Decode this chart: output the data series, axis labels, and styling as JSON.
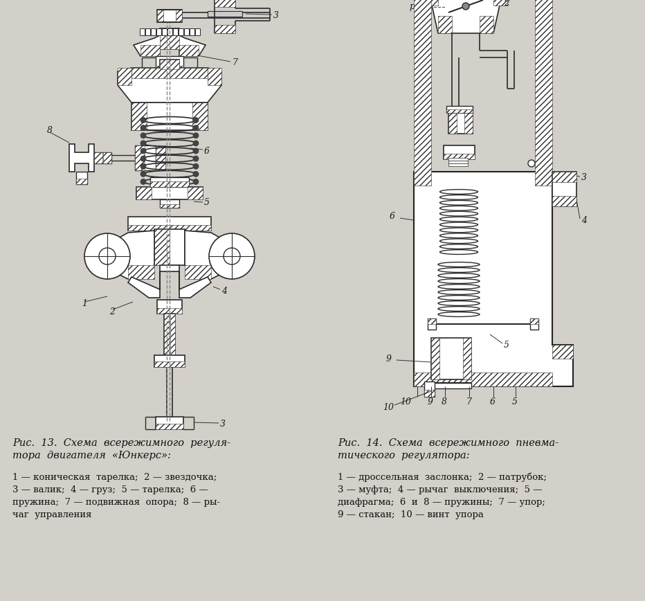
{
  "background_color": "#d3cfc9",
  "fig_width": 9.32,
  "fig_height": 8.68,
  "dpi": 100,
  "caption_left_title": "Рис.  13.  Схема  всережимного  регуля-\nтора  двигателя  «Юнкерс»:",
  "caption_left_body": "1 — коническая  тарелка;  2 — звездочка;\n3 — валик;  4 — груз;  5 — тарелка;  6 —\nпружина;  7 — подвижная  опора;  8 — ры-\nчаг  управления",
  "caption_right_title": "Рис.  14.  Схема  всережимного  пневма-\nтического  регулятора:",
  "caption_right_body": "1 — дроссельная  заслонка;  2 — патрубок;\n3 — муфта;  4 — рычаг  выключения;  5 —\nдиафрагма;  6  и  8 — пружины;  7 — упор;\n9 — стакан;  10 — винт  упора",
  "line_color": "#2a2a2a",
  "label_color": "#1a1a1a",
  "hatch_lw": 0.4
}
